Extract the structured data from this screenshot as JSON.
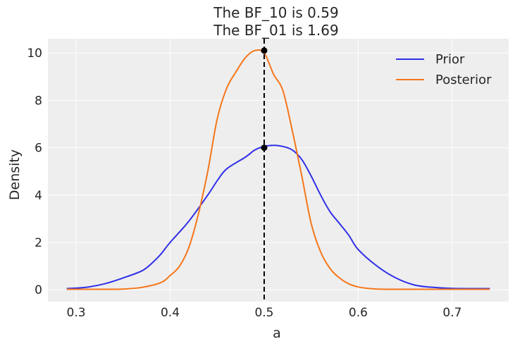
{
  "chart_data": {
    "type": "line",
    "title_lines": [
      "The BF_10 is 0.59",
      "The BF_01 is 1.69"
    ],
    "xlabel": "a",
    "ylabel": "Density",
    "xlim": [
      0.27,
      0.76
    ],
    "ylim": [
      -0.5,
      10.6
    ],
    "xticks": [
      0.3,
      0.4,
      0.5,
      0.6,
      0.7
    ],
    "xtick_labels": [
      "0.3",
      "0.4",
      "0.5",
      "0.6",
      "0.7"
    ],
    "yticks": [
      0,
      2,
      4,
      6,
      8,
      10
    ],
    "ytick_labels": [
      "0",
      "2",
      "4",
      "6",
      "8",
      "10"
    ],
    "grid": true,
    "legend_position": "top-right",
    "reference_line": {
      "x": 0.5,
      "style": "dashed",
      "color": "#000000"
    },
    "reference_points": [
      {
        "x": 0.5,
        "y": 10.1
      },
      {
        "x": 0.5,
        "y": 6.0
      }
    ],
    "series": [
      {
        "name": "Prior",
        "color": "#3030e8",
        "x": [
          0.29,
          0.31,
          0.33,
          0.35,
          0.37,
          0.38,
          0.39,
          0.4,
          0.42,
          0.44,
          0.45,
          0.46,
          0.48,
          0.49,
          0.5,
          0.51,
          0.52,
          0.53,
          0.54,
          0.55,
          0.56,
          0.57,
          0.58,
          0.59,
          0.6,
          0.62,
          0.64,
          0.66,
          0.68,
          0.7,
          0.74
        ],
        "y": [
          0.05,
          0.1,
          0.25,
          0.5,
          0.8,
          1.1,
          1.5,
          2.0,
          2.9,
          4.0,
          4.6,
          5.1,
          5.6,
          5.9,
          6.05,
          6.1,
          6.05,
          5.9,
          5.5,
          4.8,
          4.0,
          3.3,
          2.8,
          2.3,
          1.7,
          1.0,
          0.5,
          0.2,
          0.1,
          0.06,
          0.05
        ]
      },
      {
        "name": "Posterior",
        "color": "#f5761a",
        "x": [
          0.29,
          0.31,
          0.33,
          0.35,
          0.37,
          0.39,
          0.4,
          0.41,
          0.42,
          0.43,
          0.44,
          0.45,
          0.46,
          0.47,
          0.48,
          0.49,
          0.5,
          0.51,
          0.52,
          0.53,
          0.54,
          0.55,
          0.56,
          0.57,
          0.58,
          0.59,
          0.6,
          0.61,
          0.62,
          0.64,
          0.66,
          0.7,
          0.74
        ],
        "y": [
          0.02,
          0.02,
          0.02,
          0.03,
          0.1,
          0.3,
          0.6,
          1.0,
          1.8,
          3.2,
          5.0,
          7.2,
          8.5,
          9.2,
          9.8,
          10.1,
          10.0,
          9.1,
          8.4,
          6.7,
          4.8,
          2.8,
          1.6,
          0.9,
          0.5,
          0.25,
          0.12,
          0.06,
          0.03,
          0.02,
          0.02,
          0.02,
          0.02
        ]
      }
    ]
  }
}
